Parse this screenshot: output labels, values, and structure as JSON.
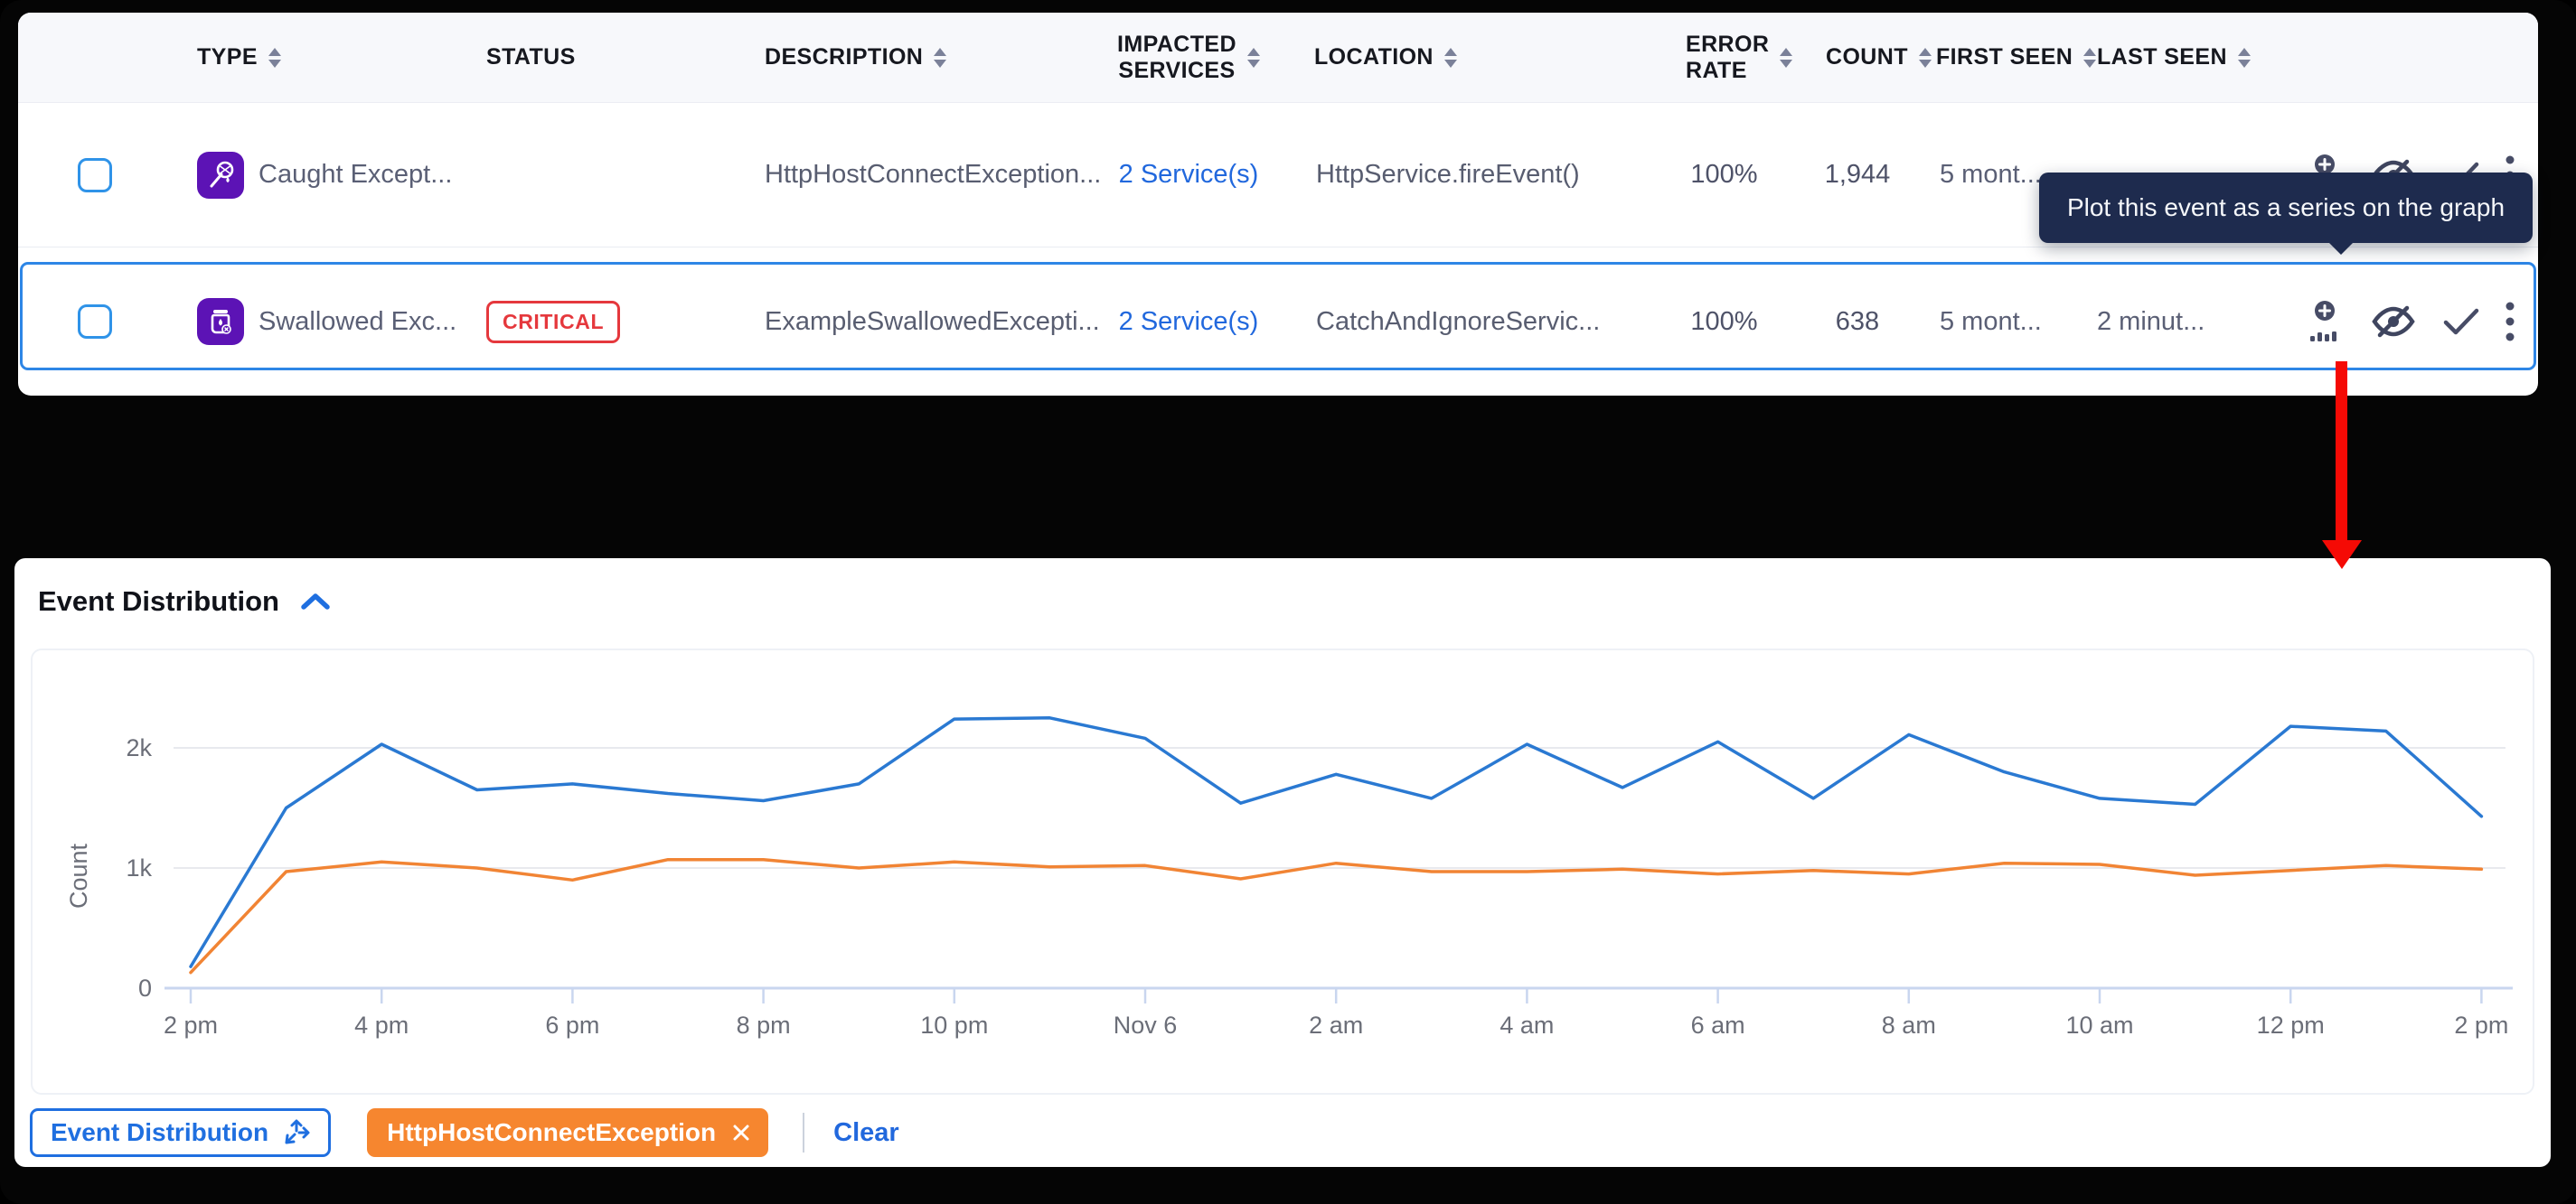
{
  "table": {
    "columns": {
      "type": "TYPE",
      "status": "STATUS",
      "description": "DESCRIPTION",
      "impacted_services": "IMPACTED\nSERVICES",
      "location": "LOCATION",
      "error_rate": "ERROR\nRATE",
      "count": "COUNT",
      "first_seen": "FIRST SEEN",
      "last_seen": "LAST SEEN"
    },
    "rows": [
      {
        "type_label": "Caught Except...",
        "type_icon": "caught-exception-icon",
        "status_badge": "",
        "description": "HttpHostConnectException...",
        "impacted_services": "2 Service(s)",
        "location": "HttpService.fireEvent()",
        "error_rate": "100%",
        "count": "1,944",
        "first_seen": "5 mont...",
        "last_seen": "",
        "selected": false
      },
      {
        "type_label": "Swallowed Exc...",
        "type_icon": "swallowed-exception-icon",
        "status_badge": "CRITICAL",
        "description": "ExampleSwallowedExcepti...",
        "impacted_services": "2 Service(s)",
        "location": "CatchAndIgnoreServic...",
        "error_rate": "100%",
        "count": "638",
        "first_seen": "5 mont...",
        "last_seen": "2 minut...",
        "selected": true
      }
    ],
    "row_actions": [
      "plot-event-icon",
      "hide-eye-slash-icon",
      "check-icon",
      "kebab-menu-icon"
    ]
  },
  "tooltip": {
    "text": "Plot this event as a series on the graph"
  },
  "chart_panel": {
    "title": "Event Distribution"
  },
  "chart_data": {
    "type": "line",
    "title": "Event Distribution",
    "xlabel": "",
    "ylabel": "Count",
    "ylim": [
      0,
      2400
    ],
    "grid": "horizontal",
    "legend_position": "none",
    "yticks": [
      {
        "value": 0,
        "label": "0"
      },
      {
        "value": 1000,
        "label": "1k"
      },
      {
        "value": 2000,
        "label": "2k"
      }
    ],
    "x_unit": "hourly points from Nov 5 2 pm to Nov 6 2 pm",
    "tick_labels": [
      "2 pm",
      "4 pm",
      "6 pm",
      "8 pm",
      "10 pm",
      "Nov 6",
      "2 am",
      "4 am",
      "6 am",
      "8 am",
      "10 am",
      "12 pm",
      "2 pm"
    ],
    "tick_every": 2,
    "series": [
      {
        "name": "Event Distribution",
        "color": "#2a79d2",
        "values": [
          180,
          1500,
          2030,
          1650,
          1700,
          1620,
          1560,
          1700,
          2240,
          2250,
          2080,
          1540,
          1780,
          1580,
          2030,
          1670,
          2050,
          1580,
          2110,
          1800,
          1580,
          1530,
          2180,
          2140,
          1430
        ]
      },
      {
        "name": "HttpHostConnectException",
        "color": "#f18434",
        "values": [
          130,
          970,
          1050,
          1000,
          900,
          1070,
          1070,
          1000,
          1050,
          1010,
          1020,
          910,
          1040,
          970,
          970,
          990,
          950,
          980,
          950,
          1040,
          1030,
          940,
          980,
          1020,
          990
        ]
      }
    ]
  },
  "legend_bar": {
    "series_chip": "Event Distribution",
    "filter_chip": "HttpHostConnectException",
    "clear_label": "Clear"
  },
  "colors": {
    "accent_blue": "#1f6fe0",
    "link_blue": "#2168dd",
    "critical_red": "#e5383d",
    "type_icon_purple": "#5c13b5",
    "tooltip_navy": "#1e2b4e",
    "chip_orange": "#f6862f",
    "annotation_arrow_red": "#f50a05",
    "chart_blue": "#2a79d2",
    "chart_orange": "#f18434"
  }
}
